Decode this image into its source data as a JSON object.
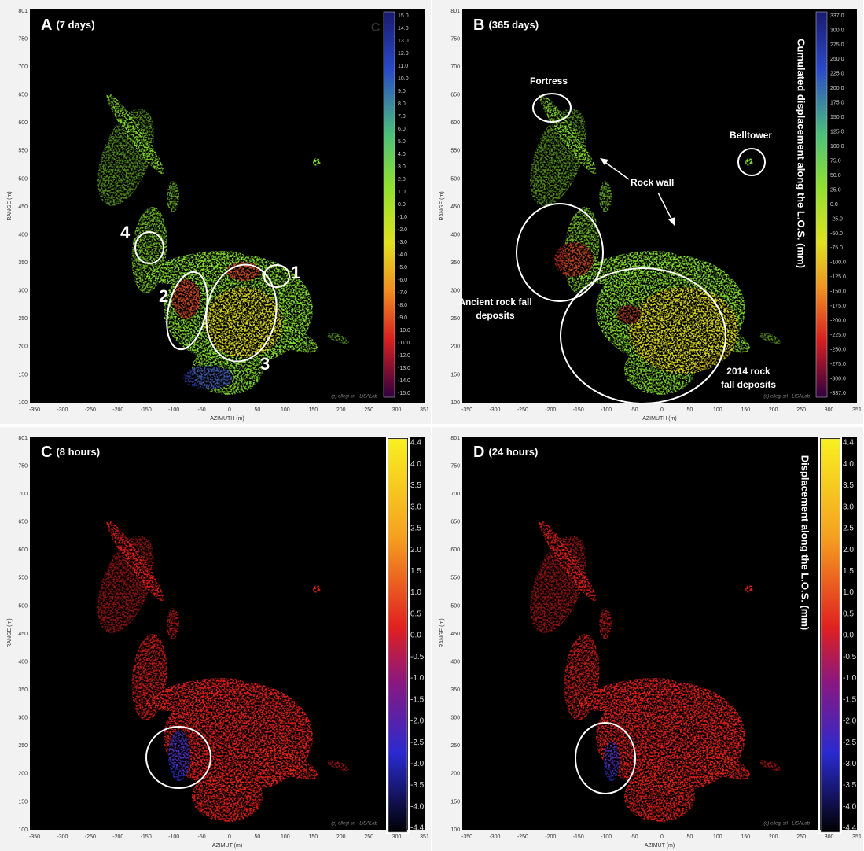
{
  "panels": [
    {
      "letter": "A",
      "period": "(7 days)",
      "x_axis_label": "AZIMUTH (m)",
      "y_axis_label": "RANGE (m)",
      "x_ticks": [
        "-350",
        "-300",
        "-250",
        "-200",
        "-150",
        "-100",
        "-50",
        "0",
        "50",
        "100",
        "150",
        "200",
        "250",
        "300",
        "351"
      ],
      "y_ticks": [
        "801",
        "750",
        "700",
        "650",
        "600",
        "550",
        "500",
        "450",
        "400",
        "350",
        "300",
        "250",
        "200",
        "150",
        "100"
      ],
      "colorbar_mark": "C",
      "colorbar_ticks": [
        "15.0",
        "14.0",
        "13.0",
        "12.0",
        "11.0",
        "10.0",
        "9.0",
        "8.0",
        "7.0",
        "6.0",
        "5.0",
        "4.0",
        "3.0",
        "2.0",
        "1.0",
        "0.0",
        "-1.0",
        "-2.0",
        "-3.0",
        "-4.0",
        "-5.0",
        "-6.0",
        "-7.0",
        "-8.0",
        "-9.0",
        "-10.0",
        "-11.0",
        "-12.0",
        "-13.0",
        "-14.0",
        "-15.0"
      ],
      "annotations": [
        "1",
        "2",
        "3",
        "4"
      ],
      "credit": "(c) ellegi srl - LiSALab"
    },
    {
      "letter": "B",
      "period": "(365 days)",
      "x_axis_label": "AZIMUTH (m)",
      "y_axis_label": "RANGE (m)",
      "x_ticks": [
        "-350",
        "-300",
        "-250",
        "-200",
        "-150",
        "-100",
        "-50",
        "0",
        "50",
        "100",
        "150",
        "200",
        "250",
        "300",
        "351"
      ],
      "y_ticks": [
        "801",
        "750",
        "700",
        "650",
        "600",
        "550",
        "500",
        "450",
        "400",
        "350",
        "300",
        "250",
        "200",
        "150",
        "100"
      ],
      "colorbar_title": "Cumulated displacement along the L.O.S. (mm)",
      "colorbar_ticks": [
        "337.0",
        "300.0",
        "275.0",
        "250.0",
        "225.0",
        "200.0",
        "175.0",
        "150.0",
        "125.0",
        "100.0",
        "75.0",
        "50.0",
        "25.0",
        "0.0",
        "-25.0",
        "-50.0",
        "-75.0",
        "-100.0",
        "-125.0",
        "-150.0",
        "-175.0",
        "-200.0",
        "-225.0",
        "-250.0",
        "-275.0",
        "-300.0",
        "-337.0"
      ],
      "annotations": [
        "Fortress",
        "Belltower",
        "Rock wall",
        [
          "Ancient rock fall",
          "deposits"
        ],
        [
          "2014 rock",
          "fall deposits"
        ]
      ],
      "credit": "(c) ellegi srl - LiSALab"
    },
    {
      "letter": "C",
      "period": "(8 hours)",
      "x_axis_label": "AZIMUT (m)",
      "y_axis_label": "RANGE (m)",
      "x_ticks": [
        "-350",
        "-300",
        "-250",
        "-200",
        "-150",
        "-100",
        "-50",
        "0",
        "50",
        "100",
        "150",
        "200",
        "250",
        "300",
        "351"
      ],
      "y_ticks": [
        "801",
        "750",
        "700",
        "650",
        "600",
        "550",
        "500",
        "450",
        "400",
        "350",
        "300",
        "250",
        "200",
        "150",
        "100"
      ],
      "colorbar_ticks": [
        "4.4",
        "4.0",
        "3.5",
        "3.0",
        "2.5",
        "2.0",
        "1.5",
        "1.0",
        "0.5",
        "0.0",
        "-0.5",
        "-1.0",
        "-1.5",
        "-2.0",
        "-2.5",
        "-3.0",
        "-3.5",
        "-4.0",
        "-4.4"
      ],
      "annotations": [],
      "credit": "(c) ellegi srl - LiSALab"
    },
    {
      "letter": "D",
      "period": "(24 hours)",
      "x_axis_label": "AZIMUT (m)",
      "y_axis_label": "RANGE (m)",
      "x_ticks": [
        "-350",
        "-300",
        "-250",
        "-200",
        "-150",
        "-100",
        "-50",
        "0",
        "50",
        "100",
        "150",
        "200",
        "250",
        "300",
        "351"
      ],
      "y_ticks": [
        "801",
        "750",
        "700",
        "650",
        "600",
        "550",
        "500",
        "450",
        "400",
        "350",
        "300",
        "250",
        "200",
        "150",
        "100"
      ],
      "colorbar_title": "Displacement along the L.O.S. (mm)",
      "colorbar_ticks": [
        "4.4",
        "4.0",
        "3.5",
        "3.0",
        "2.5",
        "2.0",
        "1.5",
        "1.0",
        "0.5",
        "0.0",
        "-0.5",
        "-1.0",
        "-1.5",
        "-2.0",
        "-2.5",
        "-3.0",
        "-3.5",
        "-4.0",
        "-4.4"
      ],
      "annotations": [],
      "credit": "(c) ellegi srl - LiSALab"
    }
  ]
}
